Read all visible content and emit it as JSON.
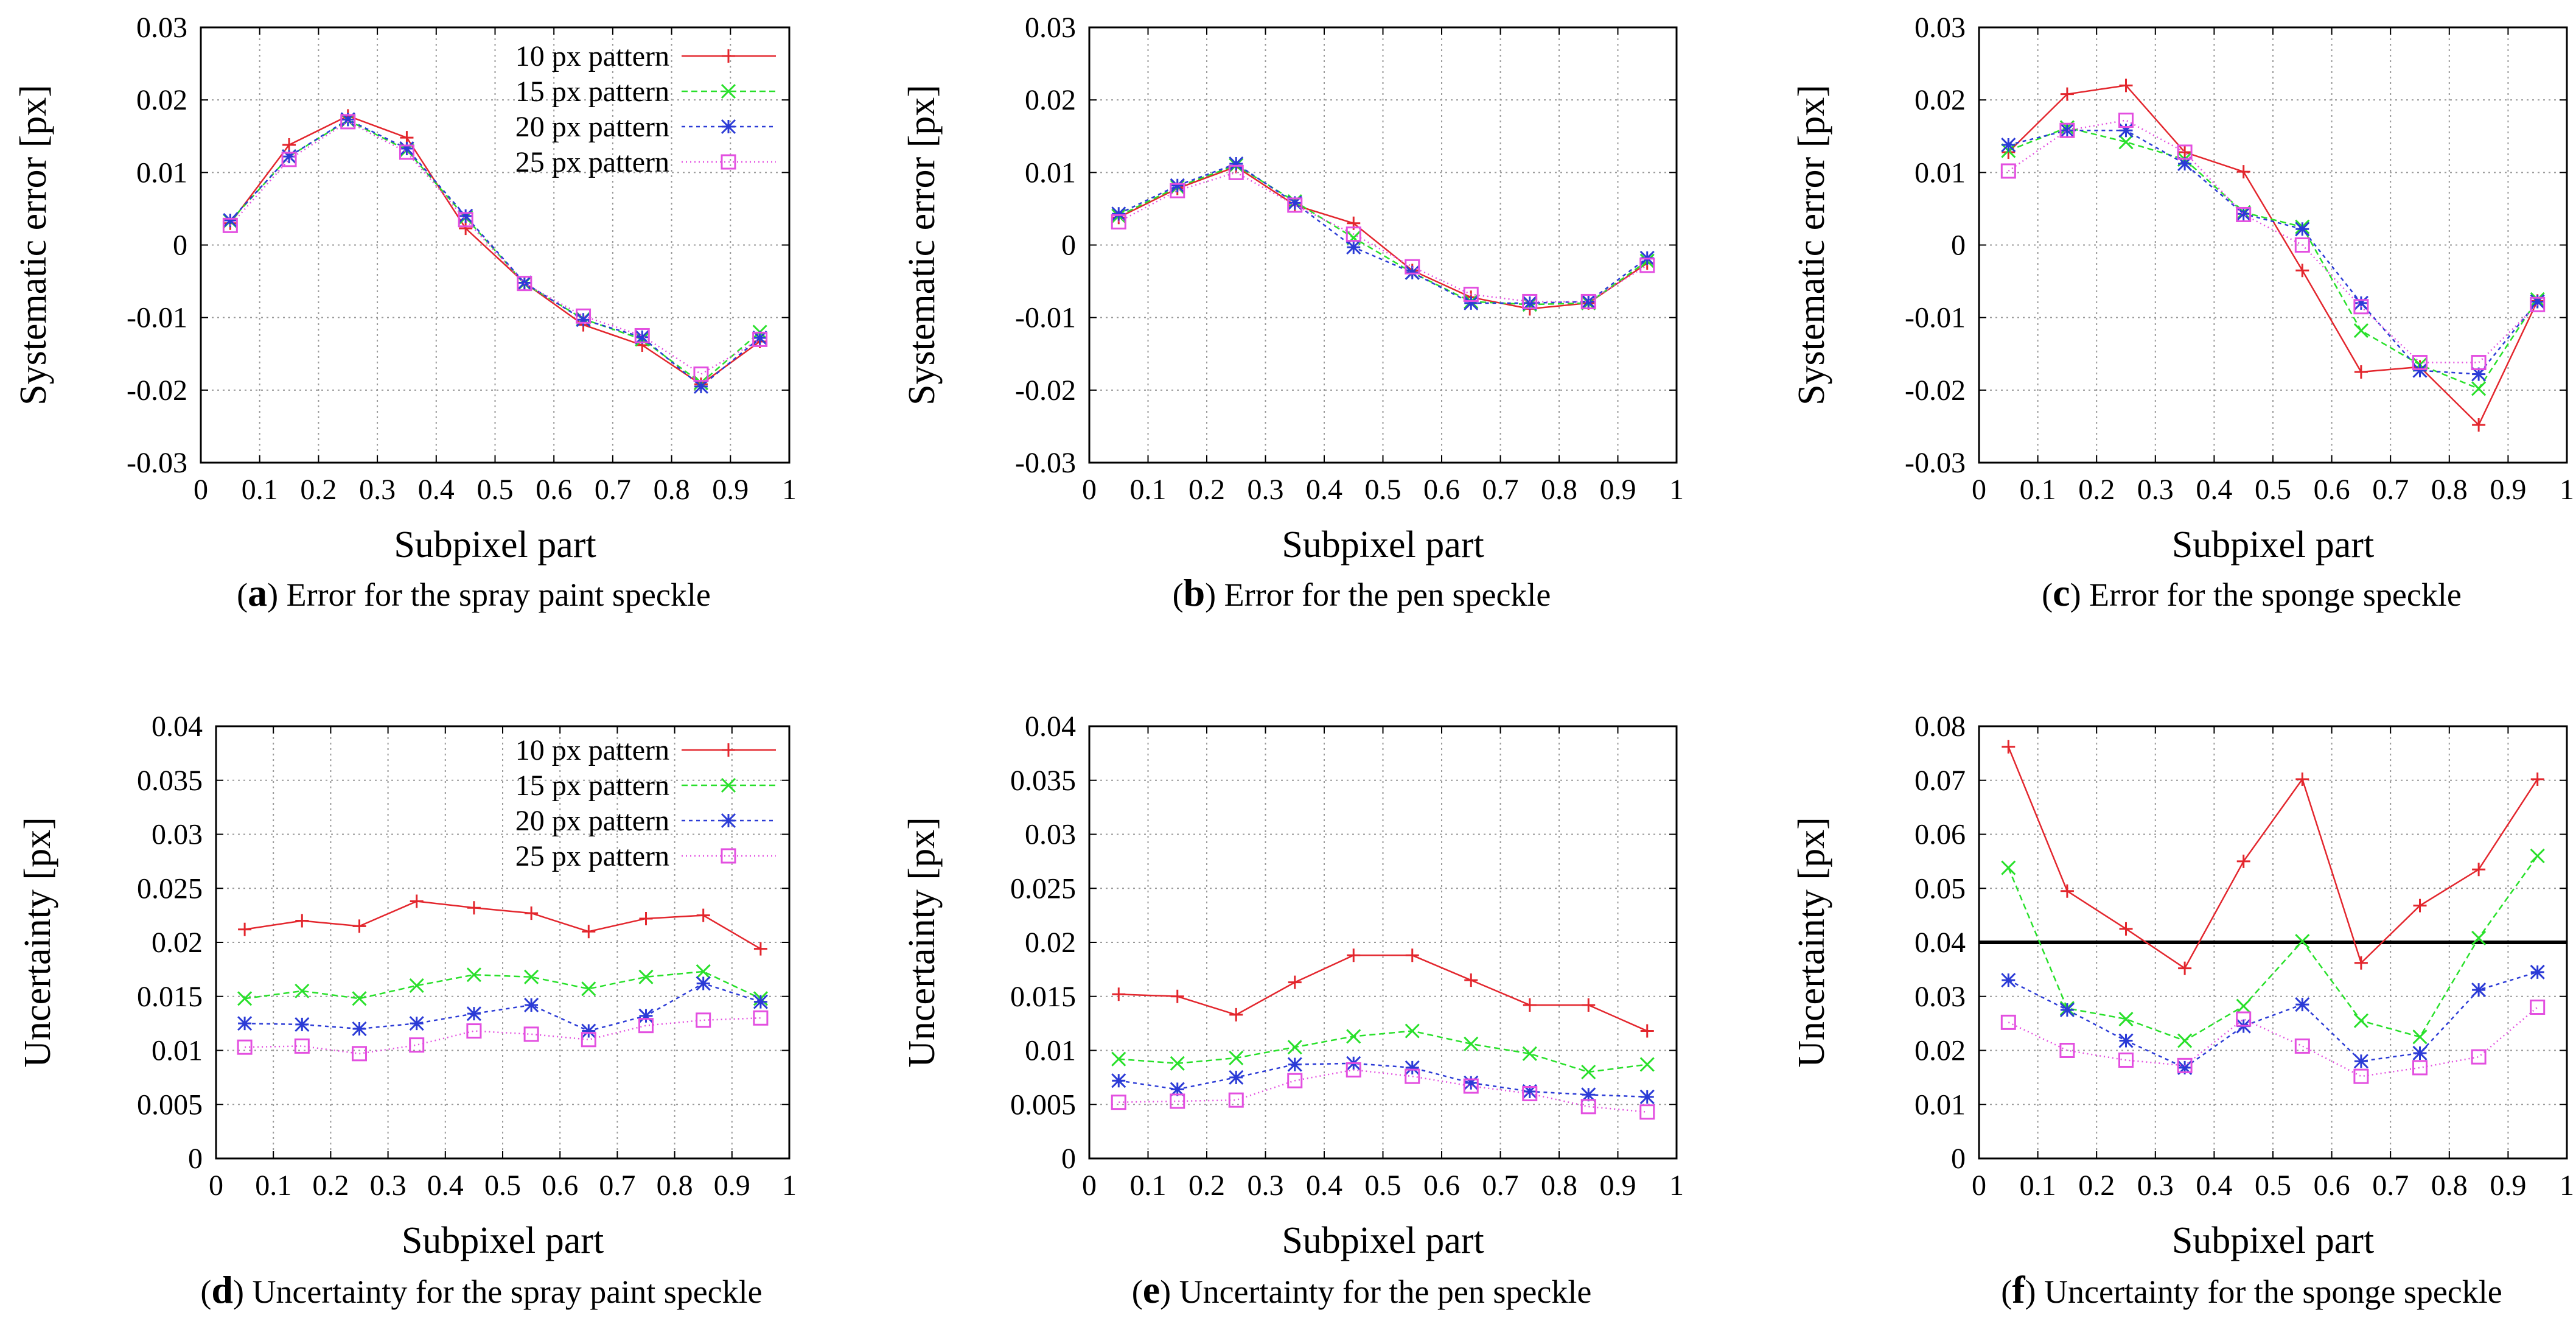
{
  "chart_data": [
    {
      "id": "a",
      "type": "line",
      "caption_letter": "a",
      "caption_text": "Error for the spray paint speckle",
      "xlabel": "Subpixel part",
      "ylabel": "Systematic error [px]",
      "xlim": [
        0,
        1
      ],
      "ylim": [
        -0.03,
        0.03
      ],
      "xticks": [
        "0",
        "0.1",
        "0.2",
        "0.3",
        "0.4",
        "0.5",
        "0.6",
        "0.7",
        "0.8",
        "0.9",
        "1"
      ],
      "yticks": [
        "-0.03",
        "-0.02",
        "-0.01",
        "0",
        "0.01",
        "0.02",
        "0.03"
      ],
      "grid": true,
      "legend": "top-right",
      "x": [
        0.05,
        0.15,
        0.25,
        0.35,
        0.45,
        0.55,
        0.65,
        0.75,
        0.85,
        0.95
      ],
      "series": [
        {
          "name": "10 px pattern",
          "values": [
            0.003,
            0.0138,
            0.0178,
            0.0148,
            0.0023,
            -0.0052,
            -0.011,
            -0.0138,
            -0.0192,
            -0.0133
          ]
        },
        {
          "name": "15 px pattern",
          "values": [
            0.0033,
            0.0122,
            0.0172,
            0.0131,
            0.0038,
            -0.0053,
            -0.0102,
            -0.013,
            -0.019,
            -0.012
          ]
        },
        {
          "name": "20 px pattern",
          "values": [
            0.0034,
            0.0122,
            0.0173,
            0.0133,
            0.004,
            -0.0052,
            -0.0103,
            -0.0127,
            -0.0195,
            -0.0128
          ]
        },
        {
          "name": "25 px pattern",
          "values": [
            0.0027,
            0.0118,
            0.017,
            0.0128,
            0.0035,
            -0.0053,
            -0.0098,
            -0.0125,
            -0.0178,
            -0.013
          ]
        }
      ]
    },
    {
      "id": "b",
      "type": "line",
      "caption_letter": "b",
      "caption_text": "Error for the pen speckle",
      "xlabel": "Subpixel part",
      "ylabel": "Systematic error [px]",
      "xlim": [
        0,
        1
      ],
      "ylim": [
        -0.03,
        0.03
      ],
      "xticks": [
        "0",
        "0.1",
        "0.2",
        "0.3",
        "0.4",
        "0.5",
        "0.6",
        "0.7",
        "0.8",
        "0.9",
        "1"
      ],
      "yticks": [
        "-0.03",
        "-0.02",
        "-0.01",
        "0",
        "0.01",
        "0.02",
        "0.03"
      ],
      "grid": true,
      "legend": "none",
      "x": [
        0.05,
        0.15,
        0.25,
        0.35,
        0.45,
        0.55,
        0.65,
        0.75,
        0.85,
        0.95
      ],
      "series": [
        {
          "name": "10 px pattern",
          "values": [
            0.0038,
            0.0078,
            0.0108,
            0.0055,
            0.003,
            -0.0035,
            -0.0072,
            -0.0088,
            -0.008,
            -0.0025
          ]
        },
        {
          "name": "15 px pattern",
          "values": [
            0.004,
            0.008,
            0.011,
            0.006,
            0.001,
            -0.0038,
            -0.0078,
            -0.0082,
            -0.008,
            -0.0022
          ]
        },
        {
          "name": "20 px pattern",
          "values": [
            0.0043,
            0.0082,
            0.0112,
            0.0058,
            -0.0003,
            -0.0038,
            -0.008,
            -0.008,
            -0.0078,
            -0.0018
          ]
        },
        {
          "name": "25 px pattern",
          "values": [
            0.0032,
            0.0075,
            0.01,
            0.0055,
            0.0015,
            -0.003,
            -0.0068,
            -0.0078,
            -0.0078,
            -0.0028
          ]
        }
      ]
    },
    {
      "id": "c",
      "type": "line",
      "caption_letter": "c",
      "caption_text": "Error for the sponge speckle",
      "xlabel": "Subpixel part",
      "ylabel": "Systematic error [px]",
      "xlim": [
        0,
        1
      ],
      "ylim": [
        -0.03,
        0.03
      ],
      "xticks": [
        "0",
        "0.1",
        "0.2",
        "0.3",
        "0.4",
        "0.5",
        "0.6",
        "0.7",
        "0.8",
        "0.9",
        "1"
      ],
      "yticks": [
        "-0.03",
        "-0.02",
        "-0.01",
        "0",
        "0.01",
        "0.02",
        "0.03"
      ],
      "grid": true,
      "legend": "none",
      "x": [
        0.05,
        0.15,
        0.25,
        0.35,
        0.45,
        0.55,
        0.65,
        0.75,
        0.85,
        0.95
      ],
      "series": [
        {
          "name": "10 px pattern",
          "values": [
            0.0128,
            0.0208,
            0.022,
            0.0128,
            0.0101,
            -0.0035,
            -0.0175,
            -0.0168,
            -0.0248,
            -0.0077
          ]
        },
        {
          "name": "15 px pattern",
          "values": [
            0.013,
            0.0162,
            0.0142,
            0.0118,
            0.0045,
            0.0025,
            -0.0118,
            -0.0165,
            -0.0198,
            -0.0075
          ]
        },
        {
          "name": "20 px pattern",
          "values": [
            0.0138,
            0.0158,
            0.0158,
            0.0112,
            0.0043,
            0.0022,
            -0.008,
            -0.0173,
            -0.0178,
            -0.0078
          ]
        },
        {
          "name": "25 px pattern",
          "values": [
            0.0102,
            0.0158,
            0.0172,
            0.0128,
            0.0042,
            0.0,
            -0.0085,
            -0.0162,
            -0.0162,
            -0.0082
          ]
        }
      ]
    },
    {
      "id": "d",
      "type": "line",
      "caption_letter": "d",
      "caption_text": "Uncertainty for the spray paint speckle",
      "xlabel": "Subpixel part",
      "ylabel": "Uncertainty [px]",
      "xlim": [
        0,
        1
      ],
      "ylim": [
        0,
        0.04
      ],
      "xticks": [
        "0",
        "0.1",
        "0.2",
        "0.3",
        "0.4",
        "0.5",
        "0.6",
        "0.7",
        "0.8",
        "0.9",
        "1"
      ],
      "yticks": [
        "0",
        "0.005",
        "0.01",
        "0.015",
        "0.02",
        "0.025",
        "0.03",
        "0.035",
        "0.04"
      ],
      "grid": true,
      "legend": "top-right",
      "x": [
        0.05,
        0.15,
        0.25,
        0.35,
        0.45,
        0.55,
        0.65,
        0.75,
        0.85,
        0.95
      ],
      "series": [
        {
          "name": "10 px pattern",
          "values": [
            0.0212,
            0.022,
            0.0215,
            0.0238,
            0.0232,
            0.0227,
            0.021,
            0.0222,
            0.0225,
            0.0194
          ]
        },
        {
          "name": "15 px pattern",
          "values": [
            0.0148,
            0.0155,
            0.0148,
            0.016,
            0.017,
            0.0168,
            0.0157,
            0.0168,
            0.0173,
            0.0148
          ]
        },
        {
          "name": "20 px pattern",
          "values": [
            0.0125,
            0.0124,
            0.012,
            0.0125,
            0.0134,
            0.0142,
            0.0118,
            0.0132,
            0.0162,
            0.0145
          ]
        },
        {
          "name": "25 px pattern",
          "values": [
            0.0103,
            0.0104,
            0.0097,
            0.0105,
            0.0118,
            0.0115,
            0.011,
            0.0123,
            0.0128,
            0.013
          ]
        }
      ]
    },
    {
      "id": "e",
      "type": "line",
      "caption_letter": "e",
      "caption_text": "Uncertainty for the pen speckle",
      "xlabel": "Subpixel part",
      "ylabel": "Uncertainty [px]",
      "xlim": [
        0,
        1
      ],
      "ylim": [
        0,
        0.04
      ],
      "xticks": [
        "0",
        "0.1",
        "0.2",
        "0.3",
        "0.4",
        "0.5",
        "0.6",
        "0.7",
        "0.8",
        "0.9",
        "1"
      ],
      "yticks": [
        "0",
        "0.005",
        "0.01",
        "0.015",
        "0.02",
        "0.025",
        "0.03",
        "0.035",
        "0.04"
      ],
      "grid": true,
      "legend": "none",
      "x": [
        0.05,
        0.15,
        0.25,
        0.35,
        0.45,
        0.55,
        0.65,
        0.75,
        0.85,
        0.95
      ],
      "series": [
        {
          "name": "10 px pattern",
          "values": [
            0.0152,
            0.015,
            0.0133,
            0.0163,
            0.0188,
            0.0188,
            0.0165,
            0.0142,
            0.0142,
            0.0118
          ]
        },
        {
          "name": "15 px pattern",
          "values": [
            0.0092,
            0.0088,
            0.0093,
            0.0103,
            0.0113,
            0.0118,
            0.0106,
            0.0097,
            0.008,
            0.0087
          ]
        },
        {
          "name": "20 px pattern",
          "values": [
            0.0072,
            0.0064,
            0.0075,
            0.0087,
            0.0088,
            0.0084,
            0.007,
            0.0062,
            0.0059,
            0.0057
          ]
        },
        {
          "name": "25 px pattern",
          "values": [
            0.0052,
            0.0053,
            0.0054,
            0.0072,
            0.0082,
            0.0076,
            0.0067,
            0.006,
            0.0048,
            0.0043
          ]
        }
      ]
    },
    {
      "id": "f",
      "type": "line",
      "caption_letter": "f",
      "caption_text": "Uncertainty for the sponge speckle",
      "xlabel": "Subpixel part",
      "ylabel": "Uncertainty [px]",
      "xlim": [
        0,
        1
      ],
      "ylim": [
        0,
        0.08
      ],
      "xticks": [
        "0",
        "0.1",
        "0.2",
        "0.3",
        "0.4",
        "0.5",
        "0.6",
        "0.7",
        "0.8",
        "0.9",
        "1"
      ],
      "yticks": [
        "0",
        "0.01",
        "0.02",
        "0.03",
        "0.04",
        "0.05",
        "0.06",
        "0.07",
        "0.08"
      ],
      "grid": true,
      "legend": "none",
      "reference_line": 0.04,
      "x": [
        0.05,
        0.15,
        0.25,
        0.35,
        0.45,
        0.55,
        0.65,
        0.75,
        0.85,
        0.95
      ],
      "series": [
        {
          "name": "10 px pattern",
          "values": [
            0.0762,
            0.0495,
            0.0425,
            0.0352,
            0.055,
            0.0702,
            0.0362,
            0.0468,
            0.0535,
            0.0702
          ]
        },
        {
          "name": "15 px pattern",
          "values": [
            0.0538,
            0.0278,
            0.0258,
            0.0218,
            0.0282,
            0.0402,
            0.0255,
            0.0225,
            0.0408,
            0.056
          ]
        },
        {
          "name": "20 px pattern",
          "values": [
            0.033,
            0.0275,
            0.0218,
            0.0168,
            0.0245,
            0.0285,
            0.018,
            0.0195,
            0.0312,
            0.0345
          ]
        },
        {
          "name": "25 px pattern",
          "values": [
            0.0252,
            0.02,
            0.0182,
            0.0172,
            0.0258,
            0.0208,
            0.0152,
            0.0168,
            0.0188,
            0.028
          ]
        }
      ]
    }
  ],
  "colors": {
    "series": [
      "#e3262d",
      "#28e02a",
      "#2b3bd6",
      "#e34fe0"
    ],
    "grid": "#999999",
    "axis": "#000000",
    "reference_line": "#000000"
  },
  "markers": [
    "plus",
    "cross",
    "asterisk",
    "square"
  ]
}
